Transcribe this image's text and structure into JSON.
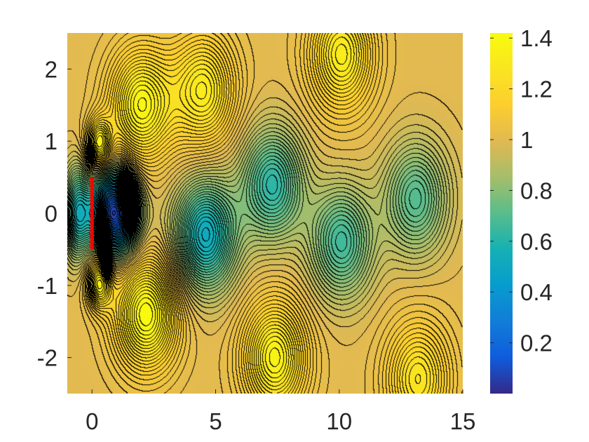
{
  "chart_data": {
    "type": "heatmap",
    "subtype": "filled-contour",
    "title": "",
    "xlabel": "",
    "ylabel": "",
    "xlim": [
      -1,
      15
    ],
    "ylim": [
      -2.5,
      2.5
    ],
    "x_ticks": [
      0,
      5,
      10,
      15
    ],
    "x_tick_labels": [
      "0",
      "5",
      "10",
      "15"
    ],
    "y_ticks": [
      2,
      1,
      0,
      -1,
      -2
    ],
    "y_tick_labels": [
      "2",
      "1",
      "0",
      "-1",
      "-2"
    ],
    "colorbar": {
      "colormap": "parula",
      "range": [
        0,
        1.42
      ],
      "ticks": [
        1.4,
        1.2,
        1,
        0.8,
        0.6,
        0.4,
        0.2
      ],
      "tick_labels": [
        "1.4",
        "1.2",
        "1",
        "0.8",
        "0.6",
        "0.4",
        "0.2"
      ]
    },
    "contour_lines": {
      "color": "#000000",
      "count": 70
    },
    "field": {
      "freestream_value": 1.0,
      "wake_extrema": [
        {
          "x": 2.0,
          "y": 1.5,
          "value": 1.38
        },
        {
          "x": 2.2,
          "y": -1.4,
          "value": 1.42
        },
        {
          "x": 4.5,
          "y": 1.7,
          "value": 1.32
        },
        {
          "x": 4.6,
          "y": -0.3,
          "value": 0.52
        },
        {
          "x": 7.3,
          "y": 0.4,
          "value": 0.62
        },
        {
          "x": 7.4,
          "y": -2.0,
          "value": 1.37
        },
        {
          "x": 10.1,
          "y": 2.2,
          "value": 1.33
        },
        {
          "x": 10.1,
          "y": -0.4,
          "value": 0.66
        },
        {
          "x": 13.1,
          "y": 0.2,
          "value": 0.7
        },
        {
          "x": 13.2,
          "y": -2.3,
          "value": 1.28
        }
      ]
    },
    "body": {
      "type": "flat-plate",
      "x": 0,
      "y_range": [
        -0.5,
        0.5
      ],
      "color": "#ff0000"
    }
  }
}
